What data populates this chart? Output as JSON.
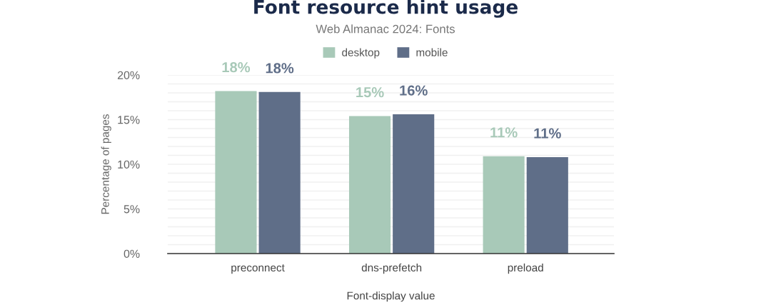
{
  "chart_data": {
    "type": "bar",
    "title": "Font resource hint usage",
    "subtitle": "Web Almanac 2024: Fonts",
    "xlabel": "Font-display value",
    "ylabel": "Percentage of pages",
    "categories": [
      "preconnect",
      "dns-prefetch",
      "preload"
    ],
    "series": [
      {
        "name": "desktop",
        "color": "#a8c9b8",
        "values": [
          18.2,
          15.4,
          10.9
        ],
        "value_labels": [
          "18%",
          "15%",
          "11%"
        ]
      },
      {
        "name": "mobile",
        "color": "#5f6e88",
        "values": [
          18.1,
          15.6,
          10.8
        ],
        "value_labels": [
          "18%",
          "16%",
          "11%"
        ]
      }
    ],
    "ylim": [
      0,
      20
    ],
    "yticks": [
      {
        "value": 0,
        "label": "0%"
      },
      {
        "value": 1,
        "label": null
      },
      {
        "value": 2,
        "label": null
      },
      {
        "value": 3,
        "label": null
      },
      {
        "value": 4,
        "label": null
      },
      {
        "value": 5,
        "label": "5%"
      },
      {
        "value": 6,
        "label": null
      },
      {
        "value": 7,
        "label": null
      },
      {
        "value": 8,
        "label": null
      },
      {
        "value": 9,
        "label": null
      },
      {
        "value": 10,
        "label": "10%"
      },
      {
        "value": 11,
        "label": null
      },
      {
        "value": 12,
        "label": null
      },
      {
        "value": 13,
        "label": null
      },
      {
        "value": 14,
        "label": null
      },
      {
        "value": 15,
        "label": "15%"
      },
      {
        "value": 16,
        "label": null
      },
      {
        "value": 17,
        "label": null
      },
      {
        "value": 18,
        "label": null
      },
      {
        "value": 19,
        "label": null
      },
      {
        "value": 20,
        "label": "20%"
      }
    ],
    "grid": "y",
    "legend": "top"
  }
}
